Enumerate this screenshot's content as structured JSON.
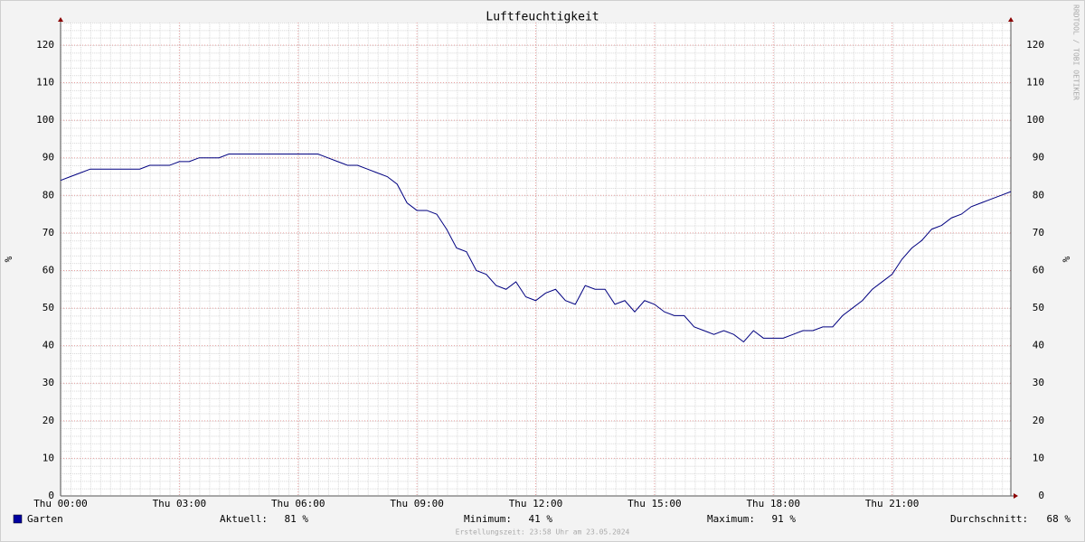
{
  "chart_data": {
    "type": "line",
    "title": "Luftfeuchtigkeit",
    "y_label": "%",
    "watermark": "RRDTOOL / TOBI OETIKER",
    "footer": "Erstellungszeit: 23:58 Uhr am 23.05.2024",
    "xlim": [
      0,
      24
    ],
    "ylim": [
      0,
      126
    ],
    "xticks": [
      {
        "value": 0,
        "label": "Thu 00:00"
      },
      {
        "value": 3,
        "label": "Thu 03:00"
      },
      {
        "value": 6,
        "label": "Thu 06:00"
      },
      {
        "value": 9,
        "label": "Thu 09:00"
      },
      {
        "value": 12,
        "label": "Thu 12:00"
      },
      {
        "value": 15,
        "label": "Thu 15:00"
      },
      {
        "value": 18,
        "label": "Thu 18:00"
      },
      {
        "value": 21,
        "label": "Thu 21:00"
      }
    ],
    "yticks": [
      0,
      10,
      20,
      30,
      40,
      50,
      60,
      70,
      80,
      90,
      100,
      110,
      120
    ],
    "grid": true,
    "x": [
      0,
      0.25,
      0.5,
      0.75,
      1,
      1.25,
      1.5,
      1.75,
      2,
      2.25,
      2.5,
      2.75,
      3,
      3.25,
      3.5,
      3.75,
      4,
      4.25,
      4.5,
      4.75,
      5,
      5.25,
      5.5,
      5.75,
      6,
      6.25,
      6.5,
      6.75,
      7,
      7.25,
      7.5,
      7.75,
      8,
      8.25,
      8.5,
      8.75,
      9,
      9.25,
      9.5,
      9.75,
      10,
      10.25,
      10.5,
      10.75,
      11,
      11.25,
      11.5,
      11.75,
      12,
      12.25,
      12.5,
      12.75,
      13,
      13.25,
      13.5,
      13.75,
      14,
      14.25,
      14.5,
      14.75,
      15,
      15.25,
      15.5,
      15.75,
      16,
      16.25,
      16.5,
      16.75,
      17,
      17.25,
      17.5,
      17.75,
      18,
      18.25,
      18.5,
      18.75,
      19,
      19.25,
      19.5,
      19.75,
      20,
      20.25,
      20.5,
      20.75,
      21,
      21.25,
      21.5,
      21.75,
      22,
      22.25,
      22.5,
      22.75,
      23,
      23.25,
      23.5,
      23.75,
      24
    ],
    "series": [
      {
        "name": "Garten",
        "color": "#000080",
        "legend_color": "#0000a0",
        "values": [
          84,
          85,
          86,
          87,
          87,
          87,
          87,
          87,
          87,
          88,
          88,
          88,
          89,
          89,
          90,
          90,
          90,
          91,
          91,
          91,
          91,
          91,
          91,
          91,
          91,
          91,
          91,
          90,
          89,
          88,
          88,
          87,
          86,
          85,
          83,
          78,
          76,
          76,
          75,
          71,
          66,
          65,
          60,
          59,
          56,
          55,
          57,
          53,
          52,
          54,
          55,
          52,
          51,
          56,
          55,
          55,
          51,
          52,
          49,
          52,
          51,
          49,
          48,
          48,
          45,
          44,
          43,
          44,
          43,
          41,
          44,
          42,
          42,
          42,
          43,
          44,
          44,
          45,
          45,
          48,
          50,
          52,
          55,
          57,
          59,
          63,
          66,
          68,
          71,
          72,
          74,
          75,
          77,
          78,
          79,
          80,
          81
        ]
      }
    ],
    "stats": [
      {
        "label": "Aktuell:",
        "value": "81 %"
      },
      {
        "label": "Minimum:",
        "value": "41 %"
      },
      {
        "label": "Maximum:",
        "value": "91 %"
      },
      {
        "label": "Durchschnitt:",
        "value": "68 %"
      }
    ]
  }
}
